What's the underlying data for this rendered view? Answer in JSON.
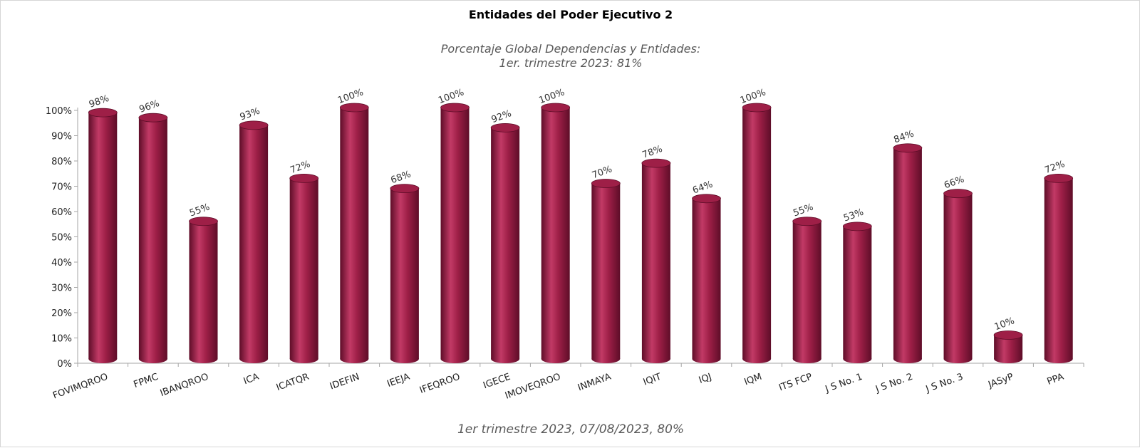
{
  "colors": {
    "bar": "#9e1f47",
    "bar_light": "#c23a66",
    "bar_dark": "#5e0d28",
    "axis": "#a6a6a6"
  },
  "chart_data": {
    "type": "bar",
    "title": "Entidades del Poder Ejecutivo 2",
    "subtitle_lines": [
      "Porcentaje Global  Dependencias y Entidades:",
      "1er. trimestre 2023: 81%"
    ],
    "footer": "1er trimestre  2023,  07/08/2023, 80%",
    "categories": [
      "FOVIMQROO",
      "FPMC",
      "IBANQROO",
      "ICA",
      "ICATQR",
      "IDEFIN",
      "IEEJA",
      "IFEQROO",
      "IGECE",
      "IMOVEQROO",
      "INMAYA",
      "IQIT",
      "IQJ",
      "IQM",
      "ITS FCP",
      "J S No. 1",
      "J S No. 2",
      "J S No. 3",
      "JASyP",
      "PPA"
    ],
    "values": [
      98,
      96,
      55,
      93,
      72,
      100,
      68,
      100,
      92,
      100,
      70,
      78,
      64,
      100,
      55,
      53,
      84,
      66,
      10,
      72
    ],
    "data_labels": [
      "98%",
      "96%",
      "55%",
      "93%",
      "72%",
      "100%",
      "68%",
      "100%",
      "92%",
      "100%",
      "70%",
      "78%",
      "64%",
      "100%",
      "55%",
      "53%",
      "84%",
      "66%",
      "10%",
      "72%"
    ],
    "y_ticks": [
      0,
      10,
      20,
      30,
      40,
      50,
      60,
      70,
      80,
      90,
      100
    ],
    "y_tick_labels": [
      "0%",
      "10%",
      "20%",
      "30%",
      "40%",
      "50%",
      "60%",
      "70%",
      "80%",
      "90%",
      "100%"
    ],
    "ylim": [
      0,
      100
    ],
    "xlabel": "",
    "ylabel": "",
    "grid": false,
    "legend": "none",
    "style": "3d-cylinder"
  }
}
